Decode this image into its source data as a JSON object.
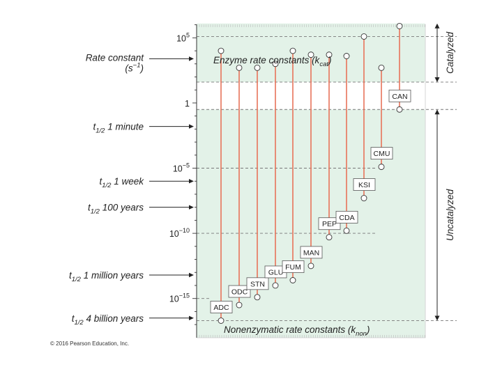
{
  "chart_data": {
    "type": "dumbbell",
    "scale": "log10",
    "ylim": [
      -17.3,
      6.1
    ],
    "y_ticks": [
      {
        "exp": 5,
        "text": "10",
        "sup": "5"
      },
      {
        "exp": 0,
        "text": "1",
        "sup": ""
      },
      {
        "exp": -5,
        "text": "10",
        "sup": "−5"
      },
      {
        "exp": -10,
        "text": "10",
        "sup": "−10"
      },
      {
        "exp": -15,
        "text": "10",
        "sup": "−15"
      }
    ],
    "top_label": {
      "main": "Enzyme rate constants (k",
      "sub": "cat",
      "end": ")"
    },
    "bottom_label": {
      "main": "Nonenzymatic rate constants (k",
      "sub": "non",
      "end": ")"
    },
    "enzymes": [
      {
        "name": "ADC",
        "kcat": 4.0,
        "knon": -16.7
      },
      {
        "name": "ODC",
        "kcat": 2.7,
        "knon": -15.5
      },
      {
        "name": "STN",
        "kcat": 2.7,
        "knon": -14.9
      },
      {
        "name": "GLU",
        "kcat": 3.0,
        "knon": -14.0
      },
      {
        "name": "FUM",
        "kcat": 4.0,
        "knon": -13.6
      },
      {
        "name": "MAN",
        "kcat": 3.7,
        "knon": -12.5
      },
      {
        "name": "PEP",
        "kcat": 3.7,
        "knon": -10.3
      },
      {
        "name": "CDA",
        "kcat": 3.6,
        "knon": -9.8
      },
      {
        "name": "KSI",
        "kcat": 5.1,
        "knon": -7.3
      },
      {
        "name": "CMU",
        "kcat": 2.7,
        "knon": -4.9
      },
      {
        "name": "CAN",
        "kcat": 5.9,
        "knon": -0.5
      }
    ],
    "left_labels": [
      {
        "value": 3.5,
        "text": "Rate constant",
        "sub": "",
        "rest": ""
      },
      {
        "value": 2.7,
        "text": "(s",
        "sub": "",
        "sup": "−1",
        "rest": ")"
      },
      {
        "value": -1.8,
        "text": "t",
        "sub": "1/2",
        "rest": " 1 minute"
      },
      {
        "value": -6.0,
        "text": "t",
        "sub": "1/2",
        "rest": " 1 week"
      },
      {
        "value": -8.0,
        "text": "t",
        "sub": "1/2",
        "rest": " 100 years"
      },
      {
        "value": -13.2,
        "text": "t",
        "sub": "1/2",
        "rest": " 1 million years"
      },
      {
        "value": -16.5,
        "text": "t",
        "sub": "1/2",
        "rest": " 4 billion years"
      }
    ],
    "bands": {
      "catalyzed": {
        "from": 6.1,
        "to": 1.6,
        "label": "Catalyzed"
      },
      "uncatalyzed": {
        "from": -0.5,
        "to": -16.7,
        "label": "Uncatalyzed"
      }
    },
    "colors": {
      "band": "#e3f2e8",
      "stem": "#e8735a",
      "dash": "#777777",
      "axis": "#333333"
    },
    "credit": "© 2016 Pearson Education, Inc."
  }
}
